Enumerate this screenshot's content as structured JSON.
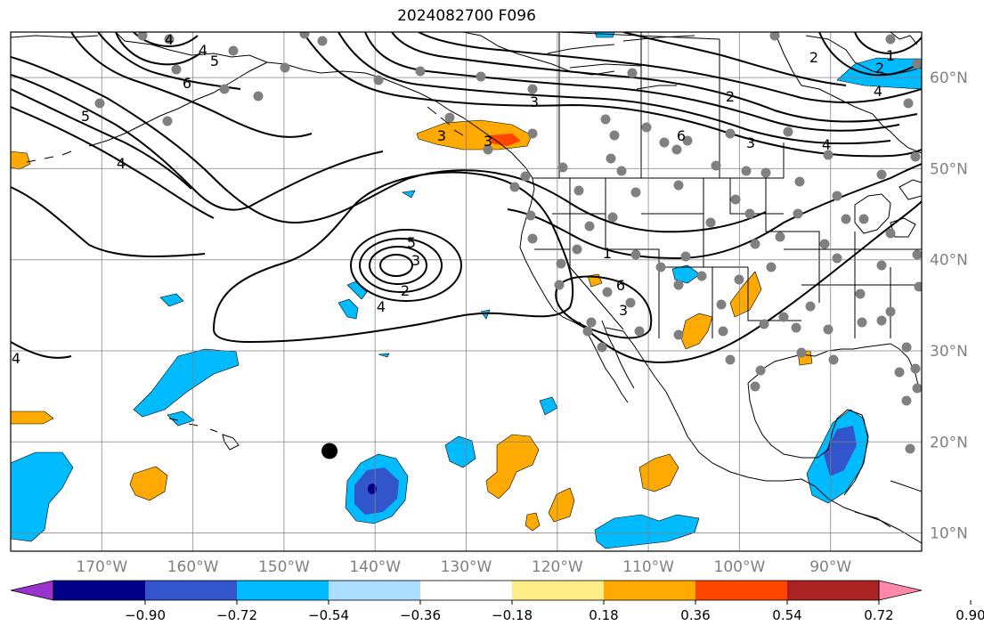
{
  "title": "2024082700 F096",
  "map": {
    "projection": "plate-carree",
    "lon_range": [
      -180,
      -80
    ],
    "lat_range": [
      8,
      65
    ],
    "lon_ticks": [
      {
        "value": -170,
        "label": "170°W"
      },
      {
        "value": -160,
        "label": "160°W"
      },
      {
        "value": -150,
        "label": "150°W"
      },
      {
        "value": -140,
        "label": "140°W"
      },
      {
        "value": -130,
        "label": "130°W"
      },
      {
        "value": -120,
        "label": "120°W"
      },
      {
        "value": -110,
        "label": "110°W"
      },
      {
        "value": -100,
        "label": "100°W"
      },
      {
        "value": -90,
        "label": "90°W"
      }
    ],
    "lat_ticks": [
      {
        "value": 60,
        "label": "60°N"
      },
      {
        "value": 50,
        "label": "50°N"
      },
      {
        "value": 40,
        "label": "40°N"
      },
      {
        "value": 30,
        "label": "30°N"
      },
      {
        "value": 20,
        "label": "20°N"
      },
      {
        "value": 10,
        "label": "10°N"
      }
    ],
    "grid": true,
    "marker": {
      "lon": -145,
      "lat": 19
    }
  },
  "colorbar": {
    "colors": [
      "#9933cc",
      "#000088",
      "#3355cc",
      "#00bbff",
      "#aaddff",
      "#ffffff",
      "#ffee88",
      "#ffaa00",
      "#ff4400",
      "#aa2222",
      "#ff88aa"
    ],
    "ticks": [
      "−0.90",
      "−0.72",
      "−0.54",
      "−0.36",
      "−0.18",
      "0.18",
      "0.36",
      "0.54",
      "0.72",
      "0.90"
    ],
    "extend": "both"
  },
  "contour_labels": [
    "4",
    "5",
    "6",
    "5",
    "4",
    "4",
    "3",
    "2",
    "6",
    "3",
    "4",
    "5",
    "3",
    "2",
    "4",
    "3",
    "3",
    "4",
    "2",
    "1",
    "2",
    "1",
    "6",
    "4",
    "3"
  ]
}
